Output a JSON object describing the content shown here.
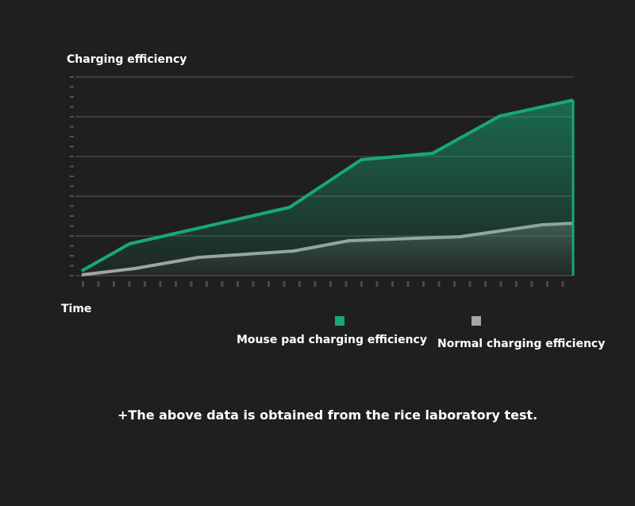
{
  "chart_data": {
    "type": "line",
    "y_label": "Charging efficiency",
    "x_label": "Time",
    "xlim": [
      0,
      100
    ],
    "ylim": [
      0,
      5
    ],
    "yticks": [
      0,
      1,
      2,
      3,
      4,
      5
    ],
    "grid": true,
    "series": [
      {
        "name": "Mouse pad charging efficiency",
        "color": "#17a878",
        "x": [
          0,
          9.7,
          42.3,
          56.9,
          71.4,
          85.1,
          100
        ],
        "values": [
          0.12,
          0.8,
          1.72,
          2.92,
          3.08,
          4.02,
          4.42
        ]
      },
      {
        "name": "Normal charging efficiency",
        "color": "#a6a6a6",
        "x": [
          0,
          10.8,
          23.8,
          43.1,
          54.4,
          77.0,
          93.7,
          100
        ],
        "values": [
          0.02,
          0.18,
          0.46,
          0.62,
          0.88,
          0.98,
          1.28,
          1.32
        ]
      }
    ],
    "note": "+The above data is obtained from the rice laboratory test."
  }
}
